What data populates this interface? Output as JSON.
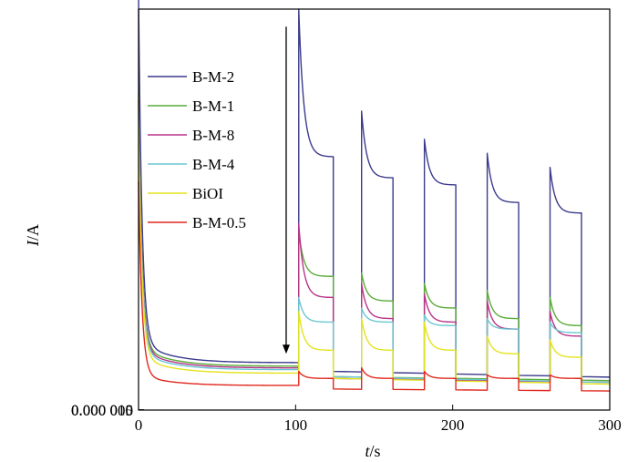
{
  "chart_data": {
    "type": "line",
    "xlabel_italic": "t",
    "xlabel_unit": "/s",
    "ylabel_italic": "I",
    "ylabel_unit": "/A",
    "xlim": [
      0,
      300
    ],
    "ylim": [
      0,
      0.0114
    ],
    "x_ticks": [
      0,
      100,
      200,
      300
    ],
    "x_tick_labels": [
      "0",
      "100",
      "200",
      "300"
    ],
    "y_ticks": [
      0,
      5e-06,
      1e-05
    ],
    "y_tick_labels": [
      "0",
      "0.000 005",
      "0.000 010"
    ],
    "grid": false,
    "legend_position": "upper-left",
    "light_on_times": [
      102,
      142,
      182,
      222,
      262
    ],
    "light_off_times": [
      124,
      162,
      202,
      242,
      282
    ],
    "annotations": [
      {
        "type": "arrow",
        "x": 94,
        "y_start": 0.0109,
        "y_end": 0.0016
      }
    ],
    "series": [
      {
        "name": "B-M-2",
        "color": "#3a3a8c",
        "initial": 0.0112,
        "plateau_at": 0.0095,
        "dark_at": 0.00135,
        "dark_baseline": 0.0011,
        "dark_end": 0.00095,
        "on_peak": [
          0.0114,
          0.0085,
          0.0077,
          0.0073,
          0.0069
        ],
        "on_plateau": [
          0.0072,
          0.0066,
          0.0064,
          0.0059,
          0.0056
        ]
      },
      {
        "name": "B-M-1",
        "color": "#5aab3a",
        "initial": 0.0085,
        "plateau_at": 0.0095,
        "dark_at": 0.00125,
        "dark_baseline": 0.00095,
        "dark_end": 0.00085,
        "on_peak": [
          0.0051,
          0.0039,
          0.0036,
          0.0034,
          0.0032
        ],
        "on_plateau": [
          0.0038,
          0.0031,
          0.0029,
          0.0026,
          0.0024
        ]
      },
      {
        "name": "B-M-8",
        "color": "#b8338a",
        "initial": 0.0083,
        "plateau_at": 0.0095,
        "dark_at": 0.0012,
        "dark_baseline": 0.0009,
        "dark_end": 0.0008,
        "on_peak": [
          0.0053,
          0.0036,
          0.0033,
          0.0031,
          0.0028
        ],
        "on_plateau": [
          0.0032,
          0.0026,
          0.0025,
          0.0023,
          0.0021
        ]
      },
      {
        "name": "B-M-4",
        "color": "#6cc6d2",
        "initial": 0.008,
        "plateau_at": 0.0095,
        "dark_at": 0.00115,
        "dark_baseline": 0.00095,
        "dark_end": 0.0008,
        "on_peak": [
          0.0032,
          0.0029,
          0.0027,
          0.0026,
          0.0025
        ],
        "on_plateau": [
          0.0025,
          0.0025,
          0.0024,
          0.0023,
          0.0022
        ]
      },
      {
        "name": "BiOI",
        "color": "#e3e31e",
        "initial": 0.0076,
        "plateau_at": 0.0095,
        "dark_at": 0.00105,
        "dark_baseline": 0.0009,
        "dark_end": 0.00075,
        "on_peak": [
          0.0028,
          0.0026,
          0.0025,
          0.0021,
          0.002
        ],
        "on_plateau": [
          0.0017,
          0.0017,
          0.0017,
          0.0016,
          0.0015
        ]
      },
      {
        "name": "B-M-0.5",
        "color": "#e0281e",
        "initial": 0.0062,
        "plateau_at": 0.0095,
        "dark_at": 0.0007,
        "dark_baseline": 0.0006,
        "dark_end": 0.00055,
        "on_peak": [
          0.0011,
          0.0012,
          0.0011,
          0.001,
          0.001
        ],
        "on_plateau": [
          0.0009,
          0.0009,
          0.0009,
          0.0009,
          0.0009
        ]
      }
    ]
  }
}
